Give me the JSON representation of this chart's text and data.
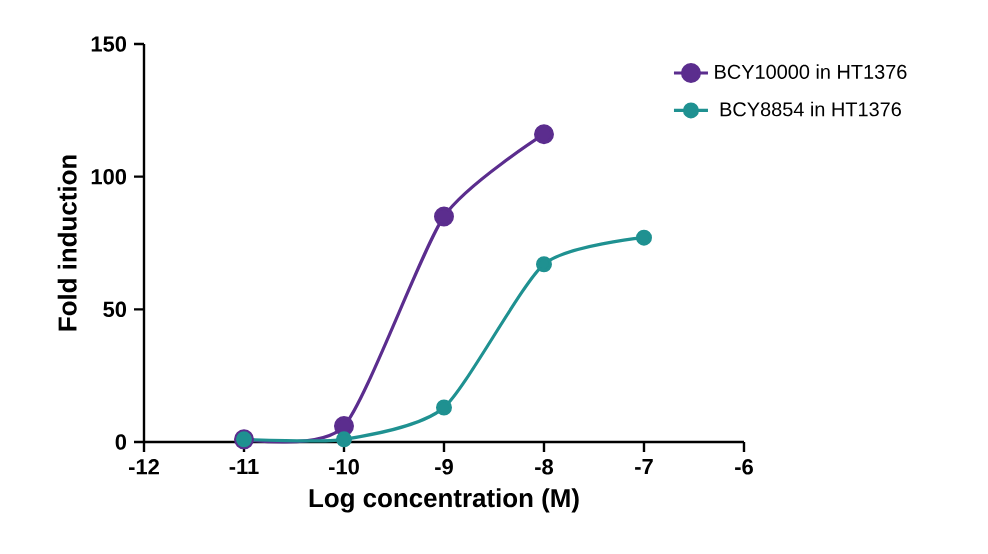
{
  "chart_data": {
    "type": "line",
    "xlabel": "Log concentration (M)",
    "ylabel": "Fold induction",
    "series": [
      {
        "name": "BCY10000 in HT1376",
        "color": "#5b2d8e",
        "x": [
          -11,
          -10,
          -9,
          -8
        ],
        "values": [
          1,
          6,
          85,
          116
        ]
      },
      {
        "name": "BCY8854 in HT1376",
        "color": "#1f9191",
        "x": [
          -11,
          -10,
          -9,
          -8,
          -7
        ],
        "values": [
          1,
          1,
          13,
          67,
          77
        ]
      }
    ],
    "xlim": [
      -12,
      -6
    ],
    "xticks": [
      -12,
      -11,
      -10,
      -9,
      -8,
      -7,
      -6
    ],
    "ylim": [
      0,
      150
    ],
    "yticks": [
      0,
      50,
      100,
      150
    ],
    "legend": "top right",
    "marker": "circle",
    "line_style": "solid"
  }
}
